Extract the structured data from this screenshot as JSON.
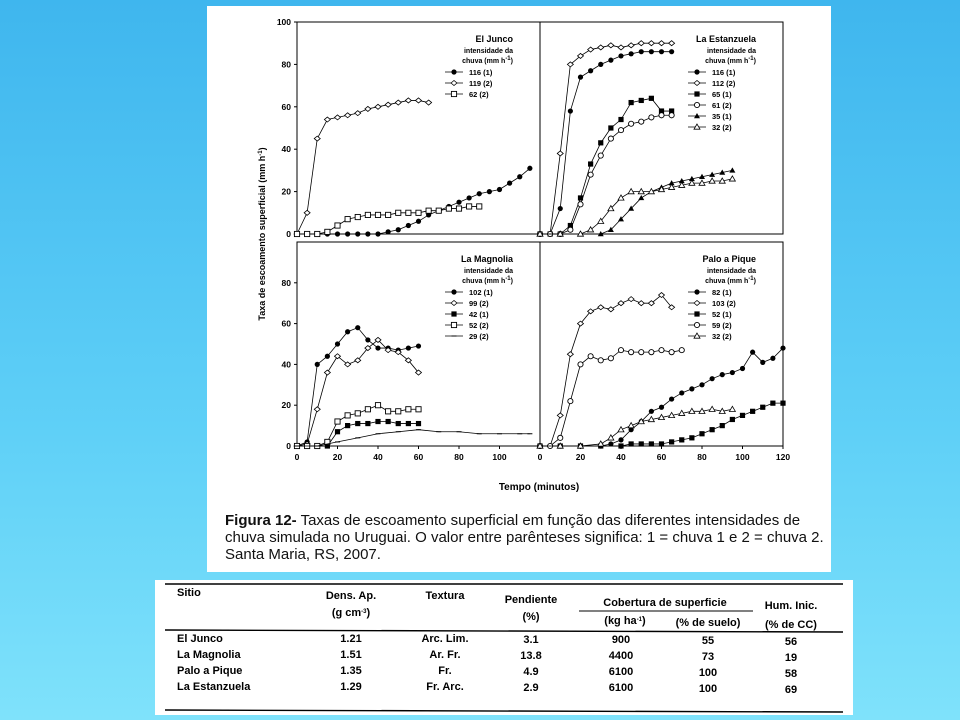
{
  "caption": {
    "label": "Figura 12-",
    "text": " Taxas de escoamento superficial em função das diferentes intensidades de chuva simulada no Uruguai. O valor entre parênteses significa: 1 = chuva 1 e 2 = chuva 2. Santa Maria, RS, 2007."
  },
  "chart_data": [
    {
      "type": "line",
      "title": "El Junco",
      "legend_title_1": "intensidade da",
      "legend_title_2": "chuva (mm h",
      "legend_title_sup": "-1",
      "legend_title_end": ")",
      "ylabel": "Taxa de escoamento superficial  (mm h",
      "ylabel_sup": "-1",
      "ylabel_end": ")",
      "xlim": [
        0,
        120
      ],
      "ylim": [
        0,
        100
      ],
      "yticks": [
        "0",
        "20",
        "40",
        "60",
        "80",
        "100"
      ],
      "legend_position": "top-right",
      "series": [
        {
          "name": "116 (1)",
          "marker": "filled-circle",
          "x": [
            0,
            5,
            10,
            15,
            20,
            25,
            30,
            35,
            40,
            45,
            50,
            55,
            60,
            65,
            70,
            75,
            80,
            85,
            90,
            95,
            100,
            105,
            110,
            115
          ],
          "y": [
            0,
            0,
            0,
            0,
            0,
            0,
            0,
            0,
            0,
            1,
            2,
            4,
            6,
            9,
            11,
            13,
            15,
            17,
            19,
            20,
            21,
            24,
            27,
            31
          ]
        },
        {
          "name": "119 (2)",
          "marker": "dash-diamond",
          "x": [
            0,
            5,
            10,
            15,
            20,
            25,
            30,
            35,
            40,
            45,
            50,
            55,
            60,
            65
          ],
          "y": [
            0,
            10,
            45,
            54,
            55,
            56,
            57,
            59,
            60,
            61,
            62,
            63,
            63,
            62
          ]
        },
        {
          "name": "62 (2)",
          "marker": "open-square",
          "x": [
            0,
            5,
            10,
            15,
            20,
            25,
            30,
            35,
            40,
            45,
            50,
            55,
            60,
            65,
            70,
            75,
            80,
            85,
            90
          ],
          "y": [
            0,
            0,
            0,
            1,
            4,
            7,
            8,
            9,
            9,
            9,
            10,
            10,
            10,
            11,
            11,
            12,
            12,
            13,
            13
          ]
        }
      ]
    },
    {
      "type": "line",
      "title": "La Estanzuela",
      "legend_title_1": "intensidade da",
      "legend_title_2": "chuva (mm h",
      "legend_title_sup": "-1",
      "legend_title_end": ")",
      "xlim": [
        0,
        120
      ],
      "ylim": [
        0,
        100
      ],
      "legend_position": "top-right",
      "series": [
        {
          "name": "116 (1)",
          "marker": "filled-circle",
          "x": [
            0,
            5,
            10,
            15,
            20,
            25,
            30,
            35,
            40,
            45,
            50,
            55,
            60,
            65
          ],
          "y": [
            0,
            0,
            12,
            58,
            74,
            77,
            80,
            82,
            84,
            85,
            86,
            86,
            86,
            86
          ]
        },
        {
          "name": "112 (2)",
          "marker": "dash-diamond",
          "x": [
            0,
            5,
            10,
            15,
            20,
            25,
            30,
            35,
            40,
            45,
            50,
            55,
            60,
            65
          ],
          "y": [
            0,
            0,
            38,
            80,
            84,
            87,
            88,
            89,
            88,
            89,
            90,
            90,
            90,
            90
          ]
        },
        {
          "name": "65 (1)",
          "marker": "filled-square",
          "x": [
            0,
            5,
            10,
            15,
            20,
            25,
            30,
            35,
            40,
            45,
            50,
            55,
            60,
            65
          ],
          "y": [
            0,
            0,
            0,
            4,
            17,
            33,
            43,
            50,
            54,
            62,
            63,
            64,
            58,
            58
          ]
        },
        {
          "name": "61 (2)",
          "marker": "open-circle",
          "x": [
            0,
            5,
            10,
            15,
            20,
            25,
            30,
            35,
            40,
            45,
            50,
            55,
            60,
            65
          ],
          "y": [
            0,
            0,
            0,
            2,
            14,
            28,
            37,
            45,
            49,
            52,
            53,
            55,
            56,
            56
          ]
        },
        {
          "name": "35 (1)",
          "marker": "filled-triangle",
          "x": [
            0,
            10,
            20,
            30,
            35,
            40,
            45,
            50,
            55,
            60,
            65,
            70,
            75,
            80,
            85,
            90,
            95
          ],
          "y": [
            0,
            0,
            0,
            0,
            2,
            7,
            12,
            17,
            20,
            22,
            24,
            25,
            26,
            27,
            28,
            29,
            30
          ]
        },
        {
          "name": "32 (2)",
          "marker": "open-triangle",
          "x": [
            0,
            10,
            20,
            25,
            30,
            35,
            40,
            45,
            50,
            55,
            60,
            65,
            70,
            75,
            80,
            85,
            90,
            95
          ],
          "y": [
            0,
            0,
            0,
            2,
            6,
            12,
            17,
            20,
            20,
            20,
            21,
            22,
            23,
            24,
            24,
            25,
            25,
            26
          ]
        }
      ]
    },
    {
      "type": "line",
      "title": "La Magnolia",
      "legend_title_1": "intensidade da",
      "legend_title_2": "chuva (mm h",
      "legend_title_sup": "-1",
      "legend_title_end": ")",
      "xlim": [
        0,
        120
      ],
      "ylim": [
        0,
        100
      ],
      "xticks": [
        "0",
        "20",
        "40",
        "60",
        "80",
        "100"
      ],
      "yticks": [
        "0",
        "20",
        "40",
        "60",
        "80"
      ],
      "legend_position": "top-right",
      "series": [
        {
          "name": "102 (1)",
          "marker": "filled-circle",
          "x": [
            0,
            5,
            10,
            15,
            20,
            25,
            30,
            35,
            40,
            45,
            50,
            55,
            60
          ],
          "y": [
            0,
            2,
            40,
            44,
            50,
            56,
            58,
            52,
            48,
            48,
            47,
            48,
            49
          ]
        },
        {
          "name": "99 (2)",
          "marker": "dash-diamond",
          "x": [
            0,
            5,
            10,
            15,
            20,
            25,
            30,
            35,
            40,
            45,
            50,
            55,
            60
          ],
          "y": [
            0,
            1,
            18,
            36,
            44,
            40,
            42,
            48,
            52,
            47,
            46,
            42,
            36
          ]
        },
        {
          "name": "42 (1)",
          "marker": "filled-square",
          "x": [
            0,
            5,
            10,
            15,
            20,
            25,
            30,
            35,
            40,
            45,
            50,
            55,
            60
          ],
          "y": [
            0,
            0,
            0,
            0,
            7,
            10,
            11,
            11,
            12,
            12,
            11,
            11,
            11
          ]
        },
        {
          "name": "52 (2)",
          "marker": "open-square",
          "x": [
            0,
            5,
            10,
            15,
            20,
            25,
            30,
            35,
            40,
            45,
            50,
            55,
            60
          ],
          "y": [
            0,
            0,
            0,
            2,
            12,
            15,
            16,
            18,
            20,
            17,
            17,
            18,
            18
          ]
        },
        {
          "name": "29 (2)",
          "marker": "dash",
          "x": [
            0,
            10,
            20,
            30,
            40,
            50,
            60,
            70,
            80,
            90,
            100,
            110,
            115
          ],
          "y": [
            0,
            0,
            2,
            4,
            6,
            7,
            8,
            7,
            7,
            6,
            6,
            6,
            6
          ]
        }
      ]
    },
    {
      "type": "line",
      "title": "Palo a Pique",
      "legend_title_1": "intensidade da",
      "legend_title_2": "chuva (mm h",
      "legend_title_sup": "-1",
      "legend_title_end": ")",
      "xlim": [
        0,
        120
      ],
      "ylim": [
        0,
        100
      ],
      "xticks": [
        "0",
        "20",
        "40",
        "60",
        "80",
        "100",
        "120"
      ],
      "legend_position": "top-right",
      "series": [
        {
          "name": "82 (1)",
          "marker": "filled-circle",
          "x": [
            0,
            10,
            20,
            30,
            35,
            40,
            45,
            50,
            55,
            60,
            65,
            70,
            75,
            80,
            85,
            90,
            95,
            100,
            105,
            110,
            115,
            120
          ],
          "y": [
            0,
            0,
            0,
            0,
            1,
            3,
            8,
            12,
            17,
            19,
            23,
            26,
            28,
            30,
            33,
            35,
            36,
            38,
            46,
            41,
            43,
            48
          ]
        },
        {
          "name": "103 (2)",
          "marker": "dash-diamond",
          "x": [
            0,
            5,
            10,
            15,
            20,
            25,
            30,
            35,
            40,
            45,
            50,
            55,
            60,
            65
          ],
          "y": [
            0,
            0,
            15,
            45,
            60,
            66,
            68,
            67,
            70,
            72,
            70,
            70,
            74,
            68
          ]
        },
        {
          "name": "52 (1)",
          "marker": "filled-square",
          "x": [
            0,
            10,
            20,
            30,
            40,
            45,
            50,
            55,
            60,
            65,
            70,
            75,
            80,
            85,
            90,
            95,
            100,
            105,
            110,
            115,
            120
          ],
          "y": [
            0,
            0,
            0,
            0,
            0,
            1,
            1,
            1,
            1,
            2,
            3,
            4,
            6,
            8,
            10,
            13,
            15,
            17,
            19,
            21,
            21
          ]
        },
        {
          "name": "59 (2)",
          "marker": "open-circle",
          "x": [
            0,
            5,
            10,
            15,
            20,
            25,
            30,
            35,
            40,
            45,
            50,
            55,
            60,
            65,
            70
          ],
          "y": [
            0,
            0,
            4,
            22,
            40,
            44,
            42,
            43,
            47,
            46,
            46,
            46,
            47,
            46,
            47
          ]
        },
        {
          "name": "32 (2)",
          "marker": "open-triangle",
          "x": [
            0,
            10,
            20,
            30,
            35,
            40,
            45,
            50,
            55,
            60,
            65,
            70,
            75,
            80,
            85,
            90,
            95
          ],
          "y": [
            0,
            0,
            0,
            1,
            4,
            8,
            10,
            12,
            13,
            14,
            15,
            16,
            17,
            17,
            18,
            17,
            18
          ]
        }
      ]
    }
  ],
  "axes_text": {
    "xlabel": "Tempo (minutos)"
  },
  "table": {
    "headers": {
      "sitio": "Sitio",
      "dens_1": "Dens. Ap.",
      "dens_2": "(g cm",
      "dens_sup": "-3",
      "dens_end": ")",
      "textura": "Textura",
      "pend_1": "Pendiente",
      "pend_2": "(%)",
      "cob": "Cobertura de superficie",
      "cob_kg": "(kg ha",
      "cob_kg_sup": "-1",
      "cob_kg_end": ")",
      "cob_pct": "(% de suelo)",
      "hum_1": "Hum. Inic.",
      "hum_2": "(% de CC)"
    },
    "rows": [
      {
        "sitio": "El Junco",
        "dens": "1.21",
        "textura": "Arc. Lim.",
        "pend": "3.1",
        "kg": "900",
        "pct": "55",
        "hum": "56"
      },
      {
        "sitio": "La Magnolia",
        "dens": "1.51",
        "textura": "Ar. Fr.",
        "pend": "13.8",
        "kg": "4400",
        "pct": "73",
        "hum": "19"
      },
      {
        "sitio": "Palo a Pique",
        "dens": "1.35",
        "textura": "Fr.",
        "pend": "4.9",
        "kg": "6100",
        "pct": "100",
        "hum": "58"
      },
      {
        "sitio": "La Estanzuela",
        "dens": "1.29",
        "textura": "Fr. Arc.",
        "pend": "2.9",
        "kg": "6100",
        "pct": "100",
        "hum": "69"
      }
    ]
  }
}
